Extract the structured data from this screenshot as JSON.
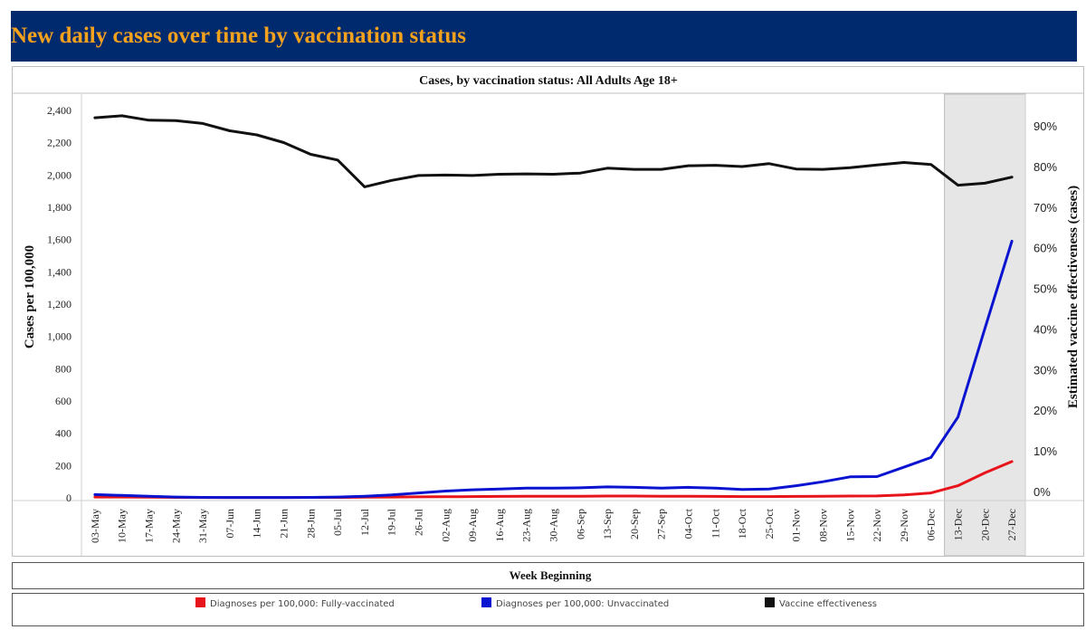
{
  "header": {
    "title": "New daily cases over time by vaccination status"
  },
  "chart_data": {
    "type": "line",
    "title": "Cases, by vaccination status: All Adults Age 18+",
    "xlabel": "Week Beginning",
    "ylabel": "Cases per 100,000",
    "y2label": "Estimated vaccine effectiveness (cases)",
    "ylim": [
      0,
      2450
    ],
    "y2lim": [
      0,
      95
    ],
    "yticks": [
      "0",
      "200",
      "400",
      "600",
      "800",
      "1,000",
      "1,200",
      "1,400",
      "1,600",
      "1,800",
      "2,000",
      "2,200",
      "2,400"
    ],
    "ytick_values": [
      0,
      200,
      400,
      600,
      800,
      1000,
      1200,
      1400,
      1600,
      1800,
      2000,
      2200,
      2400
    ],
    "y2ticks": [
      "0%",
      "10%",
      "20%",
      "30%",
      "40%",
      "50%",
      "60%",
      "70%",
      "80%",
      "90%"
    ],
    "y2tick_values": [
      0,
      10,
      20,
      30,
      40,
      50,
      60,
      70,
      80,
      90
    ],
    "categories": [
      "03-May",
      "10-May",
      "17-May",
      "24-May",
      "31-May",
      "07-Jun",
      "14-Jun",
      "21-Jun",
      "28-Jun",
      "05-Jul",
      "12-Jul",
      "19-Jul",
      "26-Jul",
      "02-Aug",
      "09-Aug",
      "16-Aug",
      "23-Aug",
      "30-Aug",
      "06-Sep",
      "13-Sep",
      "20-Sep",
      "27-Sep",
      "04-Oct",
      "11-Oct",
      "18-Oct",
      "25-Oct",
      "01-Nov",
      "08-Nov",
      "15-Nov",
      "22-Nov",
      "29-Nov",
      "06-Dec",
      "13-Dec",
      "20-Dec",
      "27-Dec"
    ],
    "shaded_region": [
      "13-Dec",
      "27-Dec"
    ],
    "grid": false,
    "legend_position": "bottom",
    "series": [
      {
        "name": "Diagnoses per 100,000: Fully-vaccinated",
        "color": "#e8141b",
        "axis": "left",
        "values": [
          5,
          5,
          4,
          3,
          2,
          2,
          2,
          2,
          3,
          3,
          4,
          5,
          6,
          7,
          8,
          9,
          10,
          10,
          10,
          11,
          11,
          10,
          10,
          9,
          8,
          8,
          9,
          10,
          11,
          12,
          18,
          30,
          75,
          155,
          225
        ]
      },
      {
        "name": "Diagnoses per 100,000: Unvaccinated",
        "color": "#0a14d0",
        "axis": "left",
        "values": [
          20,
          15,
          10,
          5,
          3,
          2,
          2,
          2,
          3,
          5,
          10,
          18,
          30,
          42,
          50,
          55,
          60,
          60,
          62,
          68,
          65,
          60,
          65,
          60,
          52,
          55,
          75,
          100,
          130,
          132,
          190,
          250,
          500,
          1050,
          1590
        ]
      },
      {
        "name": "Vaccine effectiveness",
        "color": "#111111",
        "axis": "right",
        "values": [
          92.2,
          92.7,
          91.6,
          91.5,
          90.8,
          89.0,
          88.0,
          86.1,
          83.2,
          81.8,
          75.2,
          76.8,
          78.0,
          78.1,
          78.0,
          78.3,
          78.4,
          78.3,
          78.6,
          79.8,
          79.5,
          79.5,
          80.4,
          80.5,
          80.2,
          80.9,
          79.6,
          79.5,
          79.9,
          80.6,
          81.2,
          80.7,
          75.6,
          76.1,
          77.6
        ]
      }
    ]
  }
}
